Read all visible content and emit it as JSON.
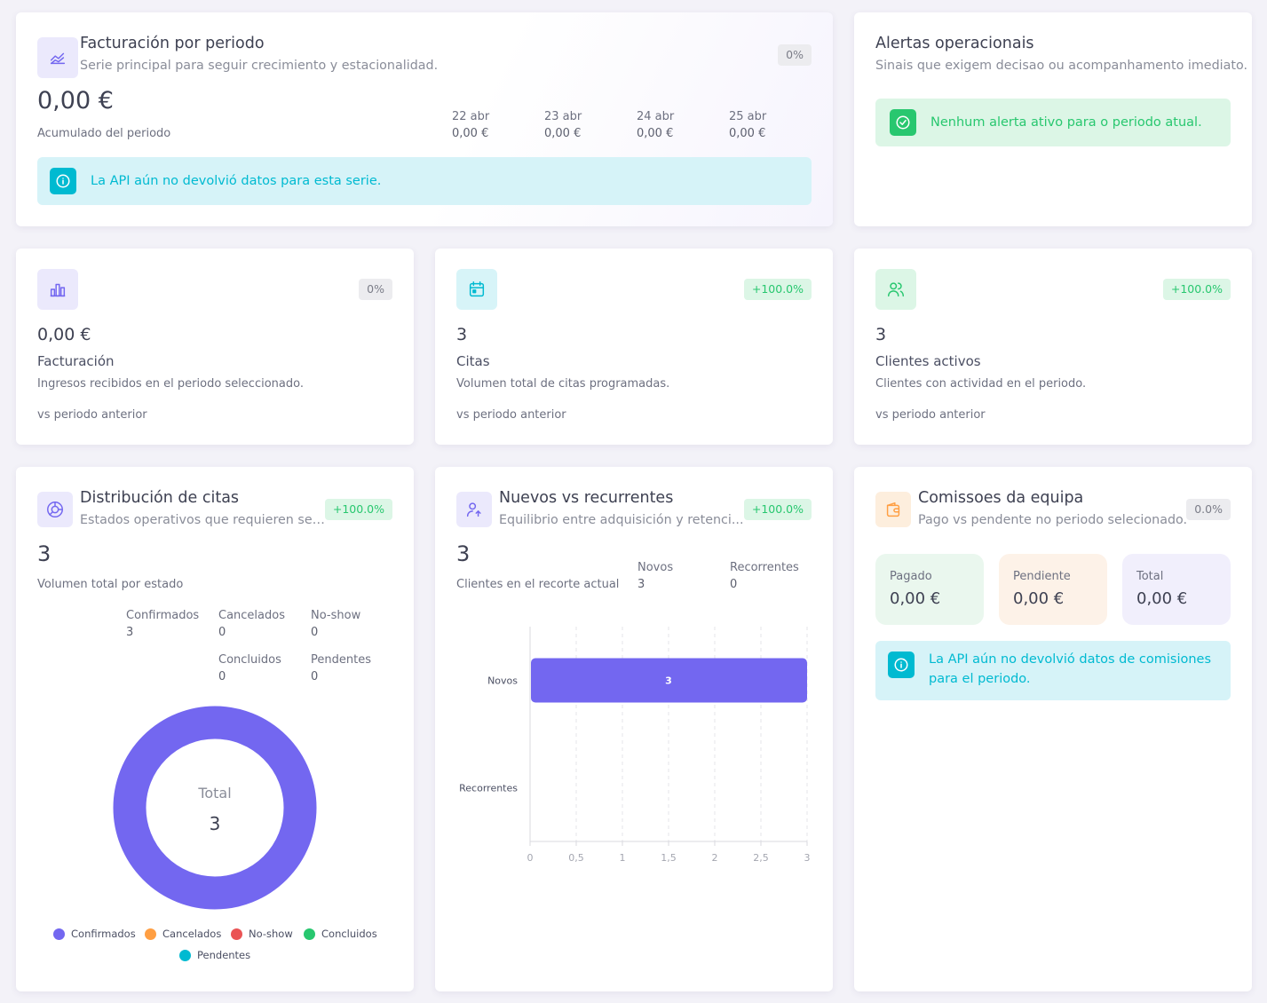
{
  "colors": {
    "primary": "#7367f0",
    "info": "#00bad1",
    "success": "#28c76f",
    "warning": "#ff9f43",
    "danger": "#ea5455"
  },
  "revenue_period": {
    "icon": "chart-line-icon",
    "title": "Facturación por periodo",
    "subtitle": "Serie principal para seguir crecimiento y estacionalidad.",
    "badge": "0%",
    "total": "0,00 €",
    "total_label": "Acumulado del periodo",
    "days": [
      {
        "date": "22 abr",
        "value": "0,00 €"
      },
      {
        "date": "23 abr",
        "value": "0,00 €"
      },
      {
        "date": "24 abr",
        "value": "0,00 €"
      },
      {
        "date": "25 abr",
        "value": "0,00 €"
      }
    ],
    "alert": "La API aún no devolvió datos para esta serie."
  },
  "alerts_card": {
    "title": "Alertas operacionais",
    "subtitle": "Sinais que exigem decisao ou acompanhamento imediato.",
    "alert": "Nenhum alerta ativo para o periodo atual."
  },
  "kpis": [
    {
      "icon": "bar-chart-icon",
      "badge": "0%",
      "value": "0,00 €",
      "title": "Facturación",
      "desc": "Ingresos recibidos en el periodo seleccionado.",
      "compare": "vs periodo anterior"
    },
    {
      "icon": "calendar-icon",
      "badge": "+100.0%",
      "value": "3",
      "title": "Citas",
      "desc": "Volumen total de citas programadas.",
      "compare": "vs periodo anterior"
    },
    {
      "icon": "users-icon",
      "badge": "+100.0%",
      "value": "3",
      "title": "Clientes activos",
      "desc": "Clientes con actividad en el periodo.",
      "compare": "vs periodo anterior"
    }
  ],
  "distribution": {
    "title": "Distribución de citas",
    "subtitle": "Estados operativos que requieren seg...",
    "badge": "+100.0%",
    "total": "3",
    "total_label": "Volumen total por estado",
    "stats": [
      {
        "name": "Confirmados",
        "value": "3"
      },
      {
        "name": "Cancelados",
        "value": "0"
      },
      {
        "name": "No-show",
        "value": "0"
      },
      {
        "name": "Concluidos",
        "value": "0"
      },
      {
        "name": "Pendentes",
        "value": "0"
      }
    ],
    "donut_label": "Total",
    "donut_value": "3",
    "legend": [
      {
        "name": "Confirmados",
        "color": "#7367f0"
      },
      {
        "name": "Cancelados",
        "color": "#ff9f43"
      },
      {
        "name": "No-show",
        "color": "#ea5455"
      },
      {
        "name": "Concluidos",
        "color": "#28c76f"
      },
      {
        "name": "Pendentes",
        "color": "#00bad1"
      }
    ]
  },
  "new_vs_recurring": {
    "title": "Nuevos vs recurrentes",
    "subtitle": "Equilibrio entre adquisición y retenci...",
    "badge": "+100.0%",
    "total": "3",
    "total_label": "Clientes en el recorte actual",
    "stats": [
      {
        "name": "Novos",
        "value": "3"
      },
      {
        "name": "Recorrentes",
        "value": "0"
      }
    ]
  },
  "chart_data": [
    {
      "type": "pie",
      "categories": [
        "Confirmados",
        "Cancelados",
        "No-show",
        "Concluidos",
        "Pendentes"
      ],
      "values": [
        3,
        0,
        0,
        0,
        0
      ],
      "colors": [
        "#7367f0",
        "#ff9f43",
        "#ea5455",
        "#28c76f",
        "#00bad1"
      ],
      "legend": "bottom"
    },
    {
      "type": "bar",
      "orientation": "horizontal",
      "categories": [
        "Novos",
        "Recorrentes"
      ],
      "values": [
        3,
        0
      ],
      "data_labels": [
        "3",
        ""
      ],
      "xticks": [
        "0",
        "0,5",
        "1",
        "1,5",
        "2",
        "2,5",
        "3"
      ],
      "xlim": [
        0,
        3
      ],
      "color": "#7367f0",
      "grid": "vertical-dashed"
    }
  ],
  "commissions": {
    "title": "Comissoes da equipa",
    "subtitle": "Pago vs pendente no periodo selecionado.",
    "badge": "0.0%",
    "items": [
      {
        "label": "Pagado",
        "value": "0,00 €"
      },
      {
        "label": "Pendiente",
        "value": "0,00 €"
      },
      {
        "label": "Total",
        "value": "0,00 €"
      }
    ],
    "alert": "La API aún no devolvió datos de comisiones para el periodo."
  }
}
